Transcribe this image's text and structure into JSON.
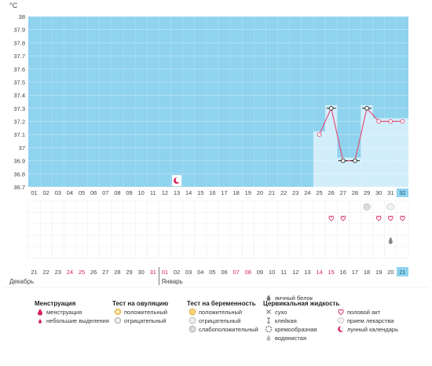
{
  "chart_data": {
    "type": "line",
    "unit_label": "°C",
    "y_ticks": [
      "38",
      "37.9",
      "37.8",
      "37.7",
      "37.6",
      "37.5",
      "37.4",
      "37.3",
      "37.2",
      "37.1",
      "37",
      "36.9",
      "36.8",
      "36.7"
    ],
    "ylim": [
      36.7,
      38.0
    ],
    "grid": true,
    "cycle_days": [
      "01",
      "02",
      "03",
      "04",
      "05",
      "06",
      "07",
      "08",
      "09",
      "10",
      "11",
      "12",
      "13",
      "14",
      "15",
      "16",
      "17",
      "18",
      "19",
      "20",
      "21",
      "22",
      "23",
      "24",
      "25",
      "26",
      "27",
      "28",
      "29",
      "30",
      "31",
      "32"
    ],
    "calendar_dates": [
      "21",
      "22",
      "23",
      "24",
      "25",
      "26",
      "27",
      "28",
      "29",
      "30",
      "31",
      "01",
      "02",
      "03",
      "04",
      "05",
      "06",
      "07",
      "08",
      "09",
      "10",
      "11",
      "12",
      "13",
      "14",
      "15",
      "16",
      "17",
      "18",
      "19",
      "20",
      "21"
    ],
    "holiday_dates_idx": [
      3,
      4,
      10,
      11,
      17,
      18,
      24,
      25
    ],
    "months": [
      {
        "label": "Декабрь",
        "start_idx": 0
      },
      {
        "label": "Январь",
        "start_idx": 11
      }
    ],
    "series": [
      {
        "points": [
          {
            "day": 25,
            "value": 37.1,
            "marker": "circle"
          },
          {
            "day": 26,
            "value": 37.3,
            "marker": "square"
          },
          {
            "day": 27,
            "value": 36.9,
            "marker": "square"
          },
          {
            "day": 28,
            "value": 36.9,
            "marker": "square"
          },
          {
            "day": 29,
            "value": 37.3,
            "marker": "square"
          },
          {
            "day": 30,
            "value": 37.2,
            "marker": "circle"
          },
          {
            "day": 31,
            "value": 37.2,
            "marker": "circle"
          },
          {
            "day": 32,
            "value": 37.2,
            "marker": "circle"
          }
        ]
      }
    ],
    "current_day": 32,
    "lunar_marker_day": 13,
    "grid_icons": [
      {
        "day": 29,
        "row": 0,
        "icon": "pregnancy-test"
      },
      {
        "day": 31,
        "row": 0,
        "icon": "medicine"
      },
      {
        "day": 26,
        "row": 1,
        "icon": "heart"
      },
      {
        "day": 27,
        "row": 1,
        "icon": "heart"
      },
      {
        "day": 30,
        "row": 1,
        "icon": "heart"
      },
      {
        "day": 31,
        "row": 1,
        "icon": "heart"
      },
      {
        "day": 32,
        "row": 1,
        "icon": "heart"
      },
      {
        "day": 31,
        "row": 3,
        "icon": "mucus"
      }
    ]
  },
  "legend": [
    {
      "title": "Менструация",
      "items": [
        {
          "label": "менструация",
          "icon": "drop-icon"
        },
        {
          "label": "небольшие выделения",
          "icon": "small-drop-icon"
        }
      ]
    },
    {
      "title": "Тест на овуляцию",
      "items": [
        {
          "label": "положительный",
          "icon": "ovulation-positive-icon"
        },
        {
          "label": "отрицательный",
          "icon": "ovulation-negative-icon"
        }
      ]
    },
    {
      "title": "Тест на беременность",
      "items": [
        {
          "label": "положительный",
          "icon": "pregnancy-positive-icon"
        },
        {
          "label": "отрицательный",
          "icon": "pregnancy-negative-icon"
        },
        {
          "label": "слабоположительный",
          "icon": "pregnancy-weak-icon"
        }
      ]
    },
    {
      "title": "Цервикальная жидкость",
      "items": [
        {
          "label": "сухо",
          "icon": "cross-icon"
        },
        {
          "label": "клейкая",
          "icon": "sticky-icon"
        },
        {
          "label": "кремообразная",
          "icon": "creamy-icon"
        },
        {
          "label": "водянистая",
          "icon": "watery-icon"
        },
        {
          "label": "яичный белок",
          "icon": "egg-white-icon"
        }
      ]
    },
    {
      "title": "",
      "items": [
        {
          "label": "половой акт",
          "icon": "heart-icon"
        },
        {
          "label": "прием лекарства",
          "icon": "pill-icon"
        },
        {
          "label": "лунный календарь",
          "icon": "moon-icon"
        }
      ]
    }
  ],
  "colors": {
    "plot_bg": "#8fd3ee",
    "data_col_bg": "#d2eefa",
    "current_day_bg": "#8fd3ee",
    "line": "#e2527a",
    "grid": "#c9e6f3",
    "holiday": "#d6245a",
    "text": "#444444"
  }
}
